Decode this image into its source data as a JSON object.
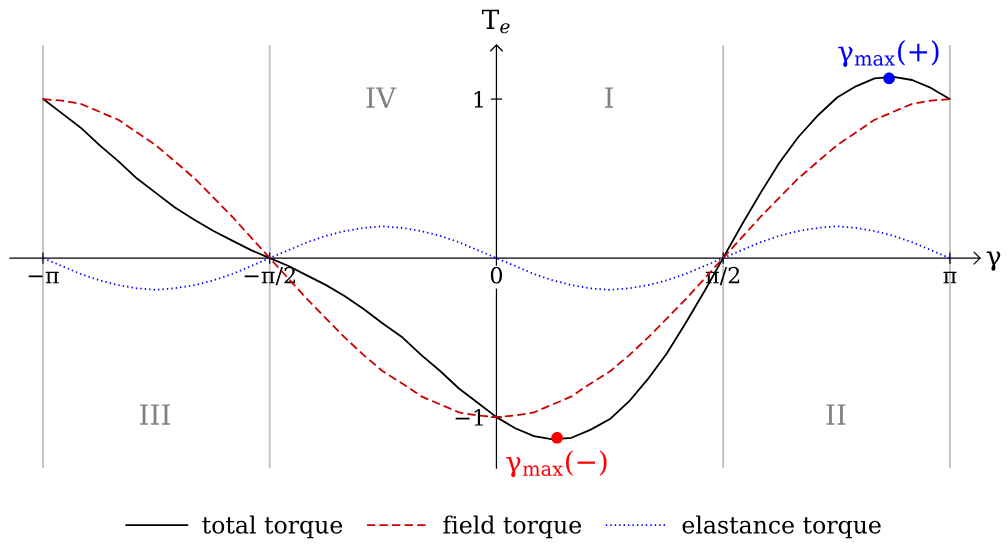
{
  "chart_data": {
    "type": "line",
    "x": [
      -3.14,
      -3.01,
      -2.88,
      -2.75,
      -2.62,
      -2.49,
      -2.36,
      -2.23,
      -2.09,
      -1.96,
      -1.83,
      -1.7,
      -1.57,
      -1.44,
      -1.31,
      -1.18,
      -1.05,
      -0.92,
      -0.79,
      -0.65,
      -0.52,
      -0.39,
      -0.26,
      -0.13,
      0,
      0.13,
      0.26,
      0.39,
      0.52,
      0.65,
      0.79,
      0.92,
      1.05,
      1.18,
      1.31,
      1.44,
      1.57,
      1.7,
      1.83,
      1.96,
      2.09,
      2.23,
      2.36,
      2.49,
      2.62,
      2.75,
      2.88,
      3.01,
      3.14
    ],
    "series": [
      {
        "name": "total torque",
        "color": "#000000",
        "line_style": "solid",
        "values": [
          1.0,
          0.91,
          0.82,
          0.71,
          0.61,
          0.5,
          0.41,
          0.32,
          0.24,
          0.17,
          0.11,
          0.05,
          0.0,
          -0.05,
          -0.11,
          -0.17,
          -0.24,
          -0.32,
          -0.41,
          -0.5,
          -0.61,
          -0.71,
          -0.82,
          -0.91,
          -1.0,
          -1.07,
          -1.12,
          -1.14,
          -1.13,
          -1.08,
          -1.01,
          -0.9,
          -0.76,
          -0.6,
          -0.41,
          -0.21,
          0.0,
          0.21,
          0.41,
          0.6,
          0.76,
          0.9,
          1.01,
          1.08,
          1.13,
          1.14,
          1.12,
          1.07,
          1.0
        ]
      },
      {
        "name": "field torque",
        "color": "#cc0000",
        "line_style": "dashed",
        "values": [
          1.0,
          0.99,
          0.97,
          0.92,
          0.87,
          0.79,
          0.71,
          0.61,
          0.5,
          0.38,
          0.26,
          0.13,
          0.0,
          -0.13,
          -0.26,
          -0.38,
          -0.5,
          -0.61,
          -0.71,
          -0.79,
          -0.87,
          -0.92,
          -0.97,
          -0.99,
          -1.0,
          -0.99,
          -0.97,
          -0.92,
          -0.87,
          -0.79,
          -0.71,
          -0.61,
          -0.5,
          -0.38,
          -0.26,
          -0.13,
          0.0,
          0.13,
          0.26,
          0.38,
          0.5,
          0.61,
          0.71,
          0.79,
          0.87,
          0.92,
          0.97,
          0.99,
          1.0
        ]
      },
      {
        "name": "elastance torque",
        "color": "#0000ff",
        "line_style": "dotted",
        "values": [
          0.0,
          -0.05,
          -0.1,
          -0.14,
          -0.17,
          -0.19,
          -0.2,
          -0.19,
          -0.17,
          -0.14,
          -0.1,
          -0.05,
          0.0,
          0.05,
          0.1,
          0.14,
          0.17,
          0.19,
          0.2,
          0.19,
          0.17,
          0.14,
          0.1,
          0.05,
          0.0,
          -0.05,
          -0.1,
          -0.14,
          -0.17,
          -0.19,
          -0.2,
          -0.19,
          -0.17,
          -0.14,
          -0.1,
          -0.05,
          0.0,
          0.05,
          0.1,
          0.14,
          0.17,
          0.19,
          0.2,
          0.19,
          0.17,
          0.14,
          0.1,
          0.05,
          0.0
        ]
      },
      {
        "type": "scatter",
        "color": "#0000ff",
        "marker": "circle",
        "x": [
          2.72
        ],
        "values": [
          1.13
        ]
      },
      {
        "type": "scatter",
        "color": "#ff0000",
        "marker": "circle",
        "x": [
          0.42
        ],
        "values": [
          -1.13
        ]
      }
    ],
    "xlabel": "γ",
    "ylabel": "T$_{e}$",
    "xlim": [
      -3.37,
      3.35
    ],
    "ylim": [
      -1.32,
      1.34
    ],
    "xticks": [
      {
        "value": -3.1416,
        "label": "−π"
      },
      {
        "value": -1.5708,
        "label": "−π/2"
      },
      0,
      {
        "value": 1.5708,
        "label": "π/2"
      },
      {
        "value": 3.1416,
        "label": "π"
      }
    ],
    "yticks": [
      {
        "value": -1,
        "label": "−1"
      },
      1
    ],
    "ref_lines": [
      {
        "axis": "x",
        "value": -3.1416,
        "color": "#bfbfbf"
      },
      {
        "axis": "x",
        "value": -1.5708,
        "color": "#bfbfbf"
      },
      {
        "axis": "x",
        "value": 1.5708,
        "color": "#bfbfbf"
      },
      {
        "axis": "x",
        "value": 3.1416,
        "color": "#bfbfbf"
      }
    ],
    "annotations": [
      "IV",
      "I",
      "III",
      "II",
      {
        "text": "γ$_{max}$(+)",
        "x": 2.72,
        "y": 1.13
      },
      {
        "text": "γ$_{max}$(−)",
        "x": 0.42,
        "y": -1.13
      }
    ],
    "legend": "bottom"
  }
}
